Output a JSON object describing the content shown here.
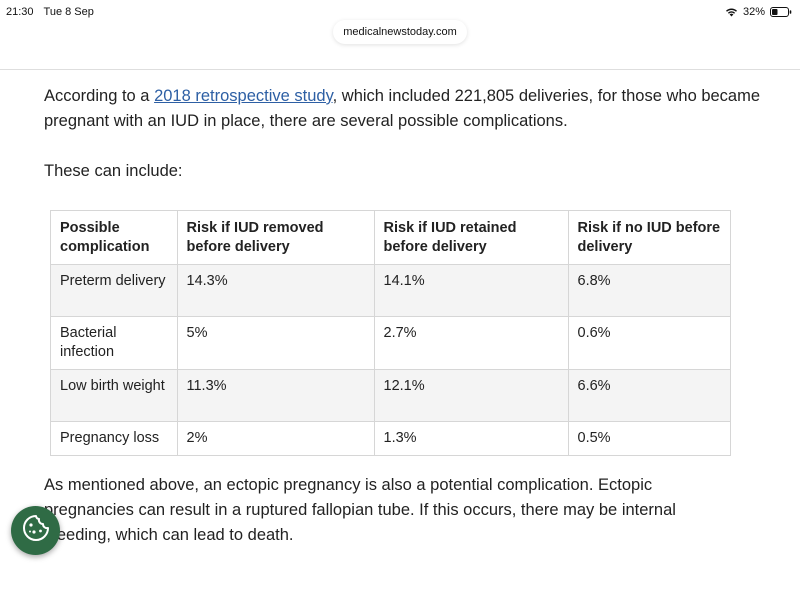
{
  "status_bar": {
    "time": "21:30",
    "date": "Tue 8 Sep",
    "battery": "32%"
  },
  "browser": {
    "url": "medicalnewstoday.com"
  },
  "article": {
    "intro_before_link": "According to a ",
    "intro_link": "2018 retrospective study",
    "intro_after_link": ", which included 221,805 deliveries, for those who became pregnant with an IUD in place, there are several possible complications.",
    "these_can_include": "These can include:",
    "table": {
      "headers": [
        "Possible complication",
        "Risk if IUD removed before delivery",
        "Risk if IUD retained before delivery",
        "Risk if no IUD before delivery"
      ],
      "rows": [
        [
          "Preterm delivery",
          "14.3%",
          "14.1%",
          "6.8%"
        ],
        [
          "Bacterial infection",
          "5%",
          "2.7%",
          "0.6%"
        ],
        [
          "Low birth weight",
          "11.3%",
          "12.1%",
          "6.6%"
        ],
        [
          "Pregnancy loss",
          "2%",
          "1.3%",
          "0.5%"
        ]
      ]
    },
    "after_table": "As mentioned above, an ectopic pregnancy is also a potential complication. Ectopic pregnancies can result in a ruptured fallopian tube. If this occurs, there may be internal bleeding, which can lead to death."
  },
  "icons": {
    "wifi": "wifi-icon",
    "battery": "battery-icon",
    "cookie": "cookie-icon"
  },
  "colors": {
    "link": "#2d5fa4",
    "cookie_button": "#2f6b45",
    "table_shade": "#f4f4f4"
  }
}
